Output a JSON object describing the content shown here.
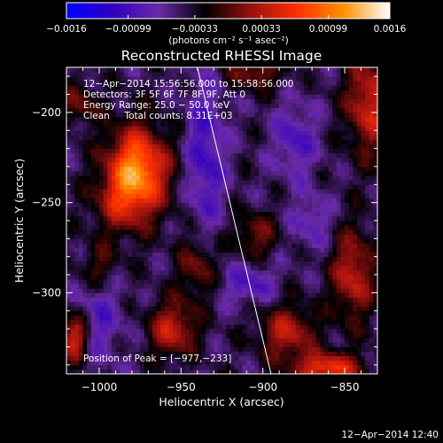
{
  "chart_data": {
    "type": "heatmap",
    "title": "Reconstructed RHESSI Image",
    "xlabel": "Heliocentric X (arcsec)",
    "ylabel": "Heliocentric Y (arcsec)",
    "xlim": [
      -1020,
      -830
    ],
    "ylim": [
      -345,
      -175
    ],
    "x_ticks": [
      -1000,
      -950,
      -900,
      -850
    ],
    "x_tick_labels": [
      "−1000",
      "−950",
      "−900",
      "−850"
    ],
    "y_ticks": [
      -200,
      -250,
      -300
    ],
    "y_tick_labels": [
      "−200",
      "−250",
      "−300"
    ],
    "colorbar": {
      "range": [
        -0.0016,
        0.0016
      ],
      "ticks": [
        -0.0016,
        -0.00099,
        -0.00033,
        0.00033,
        0.00099,
        0.0016
      ],
      "tick_labels": [
        "−0.0016",
        "−0.00099",
        "−0.00033",
        "0.00033",
        "0.00099",
        "0.0016"
      ],
      "units_label": "(photons cm⁻² s⁻¹ asec⁻²)",
      "colors": [
        "#0000ff",
        "#3000c0",
        "#6a2aa8",
        "#000000",
        "#9a1010",
        "#ff3000",
        "#ff9000",
        "#ffffff"
      ]
    },
    "annotations": [
      "12−Apr−2014 15:56:56.000 to 15:58:56.000",
      "Detectors: 3F 5F 6F 7F 8F 9F, Att 0",
      "Energy Range: 25.0 − 50.0 keV",
      "Clean     Total counts: 8.31E+03"
    ],
    "peak_label": "Position of Peak = [−977,−233]",
    "peak": [
      -977,
      -233
    ],
    "limb_line": [
      [
        -940,
        -175
      ],
      [
        -895,
        -345
      ]
    ],
    "blobs": [
      {
        "x": -977,
        "y": -233,
        "sx": 13,
        "sy": 17,
        "amp": 0.0016
      },
      {
        "x": -1000,
        "y": -285,
        "sx": 8,
        "sy": 9,
        "amp": 0.00045
      },
      {
        "x": -905,
        "y": -177,
        "sx": 12,
        "sy": 7,
        "amp": 0.0006
      },
      {
        "x": -835,
        "y": -195,
        "sx": 10,
        "sy": 20,
        "amp": 0.0009
      },
      {
        "x": -845,
        "y": -290,
        "sx": 9,
        "sy": 18,
        "amp": 0.00085
      },
      {
        "x": -955,
        "y": -320,
        "sx": 10,
        "sy": 11,
        "amp": 0.00085
      },
      {
        "x": -940,
        "y": -285,
        "sx": 8,
        "sy": 12,
        "amp": 0.0006
      },
      {
        "x": -905,
        "y": -268,
        "sx": 9,
        "sy": 9,
        "amp": 0.00055
      },
      {
        "x": -885,
        "y": -322,
        "sx": 12,
        "sy": 11,
        "amp": 0.0008
      },
      {
        "x": -860,
        "y": -342,
        "sx": 14,
        "sy": 6,
        "amp": 0.0011
      },
      {
        "x": -1015,
        "y": -325,
        "sx": 6,
        "sy": 9,
        "amp": 0.001
      },
      {
        "x": -1012,
        "y": -195,
        "sx": 8,
        "sy": 8,
        "amp": 0.0005
      },
      {
        "x": -990,
        "y": -252,
        "sx": 12,
        "sy": 12,
        "amp": 0.0004
      },
      {
        "x": -935,
        "y": -225,
        "sx": 8,
        "sy": 30,
        "amp": -0.0006
      },
      {
        "x": -880,
        "y": -215,
        "sx": 9,
        "sy": 14,
        "amp": -0.0005
      },
      {
        "x": -1000,
        "y": -315,
        "sx": 10,
        "sy": 18,
        "amp": -0.0004
      },
      {
        "x": -908,
        "y": -295,
        "sx": 11,
        "sy": 8,
        "amp": -0.0005
      },
      {
        "x": -870,
        "y": -260,
        "sx": 8,
        "sy": 10,
        "amp": -0.0004
      }
    ]
  },
  "footer": {
    "timestamp": "12−Apr−2014 12:40"
  }
}
